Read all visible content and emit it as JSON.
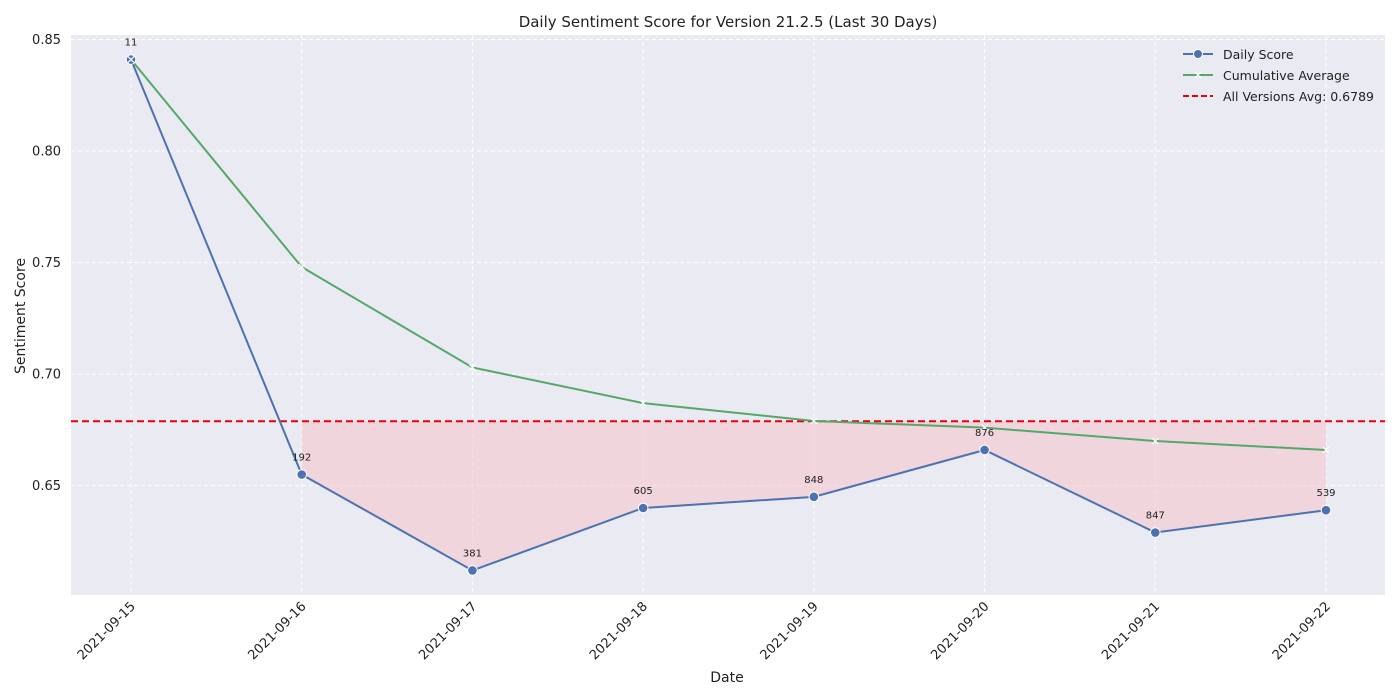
{
  "chart_data": {
    "type": "line",
    "title": "Daily Sentiment Score for Version 21.2.5 (Last 30 Days)",
    "xlabel": "Date",
    "ylabel": "Sentiment Score",
    "x": [
      "2021-09-15",
      "2021-09-16",
      "2021-09-17",
      "2021-09-18",
      "2021-09-19",
      "2021-09-20",
      "2021-09-21",
      "2021-09-22"
    ],
    "ylim": [
      0.601,
      0.852
    ],
    "yticks": [
      "0.65",
      "0.70",
      "0.75",
      "0.80",
      "0.85"
    ],
    "grid": true,
    "legend_position": "top-right",
    "series": [
      {
        "name": "Daily Score",
        "values": [
          0.841,
          0.655,
          0.612,
          0.64,
          0.645,
          0.666,
          0.629,
          0.639
        ],
        "data_labels": [
          "11",
          "192",
          "381",
          "605",
          "848",
          "876",
          "847",
          "539"
        ],
        "color": "#4c72b0",
        "marker": "circle"
      },
      {
        "name": "Cumulative Average",
        "values": [
          0.841,
          0.748,
          0.703,
          0.687,
          0.679,
          0.676,
          0.67,
          0.666
        ],
        "color": "#55a868",
        "marker": "x"
      }
    ],
    "reference_line": {
      "name": "All Versions Avg: 0.6789",
      "value": 0.6789,
      "color": "#e8000b",
      "style": "dashed"
    },
    "shaded_region": {
      "description": "area between daily score and all-versions average where below average",
      "color": "#f4c2cc"
    },
    "background": "#eaeaf2"
  }
}
